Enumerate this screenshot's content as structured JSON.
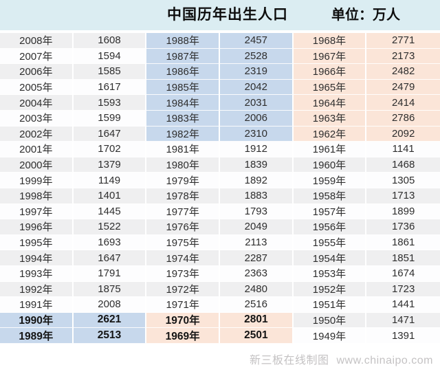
{
  "header": {
    "title": "中国历年出生人口",
    "unit_label": "单位：万人"
  },
  "footer": {
    "credit": "新三板在线制图",
    "site": "www.chinaipo.com"
  },
  "watermark": [
    "新三板在线",
    "www.chinaipo.com"
  ],
  "colors": {
    "header_bg": "#dbedf2",
    "row_gray": "#efeff0",
    "row_white": "#fdfdfe",
    "highlight_blue": "#c7d8ec",
    "highlight_peach": "#fbe5d8",
    "text": "#2e2e2e",
    "footer_text": "#c4c2c3"
  },
  "chart_data": {
    "type": "table",
    "title": "中国历年出生人口",
    "unit": "万人",
    "groups": [
      {
        "rows": [
          {
            "year": "2008年",
            "value": 1608,
            "hl": null,
            "bold": false
          },
          {
            "year": "2007年",
            "value": 1594,
            "hl": null,
            "bold": false
          },
          {
            "year": "2006年",
            "value": 1585,
            "hl": null,
            "bold": false
          },
          {
            "year": "2005年",
            "value": 1617,
            "hl": null,
            "bold": false
          },
          {
            "year": "2004年",
            "value": 1593,
            "hl": null,
            "bold": false
          },
          {
            "year": "2003年",
            "value": 1599,
            "hl": null,
            "bold": false
          },
          {
            "year": "2002年",
            "value": 1647,
            "hl": null,
            "bold": false
          },
          {
            "year": "2001年",
            "value": 1702,
            "hl": null,
            "bold": false
          },
          {
            "year": "2000年",
            "value": 1379,
            "hl": null,
            "bold": false
          },
          {
            "year": "1999年",
            "value": 1149,
            "hl": null,
            "bold": false
          },
          {
            "year": "1998年",
            "value": 1401,
            "hl": null,
            "bold": false
          },
          {
            "year": "1997年",
            "value": 1445,
            "hl": null,
            "bold": false
          },
          {
            "year": "1996年",
            "value": 1522,
            "hl": null,
            "bold": false
          },
          {
            "year": "1995年",
            "value": 1693,
            "hl": null,
            "bold": false
          },
          {
            "year": "1994年",
            "value": 1647,
            "hl": null,
            "bold": false
          },
          {
            "year": "1993年",
            "value": 1791,
            "hl": null,
            "bold": false
          },
          {
            "year": "1992年",
            "value": 1875,
            "hl": null,
            "bold": false
          },
          {
            "year": "1991年",
            "value": 2008,
            "hl": null,
            "bold": false
          },
          {
            "year": "1990年",
            "value": 2621,
            "hl": "blue",
            "bold": true
          },
          {
            "year": "1989年",
            "value": 2513,
            "hl": "blue",
            "bold": true
          }
        ]
      },
      {
        "rows": [
          {
            "year": "1988年",
            "value": 2457,
            "hl": "blue",
            "bold": false
          },
          {
            "year": "1987年",
            "value": 2528,
            "hl": "blue",
            "bold": false
          },
          {
            "year": "1986年",
            "value": 2319,
            "hl": "blue",
            "bold": false
          },
          {
            "year": "1985年",
            "value": 2042,
            "hl": "blue",
            "bold": false
          },
          {
            "year": "1984年",
            "value": 2031,
            "hl": "blue",
            "bold": false
          },
          {
            "year": "1983年",
            "value": 2006,
            "hl": "blue",
            "bold": false
          },
          {
            "year": "1982年",
            "value": 2310,
            "hl": "blue",
            "bold": false
          },
          {
            "year": "1981年",
            "value": 1912,
            "hl": null,
            "bold": false
          },
          {
            "year": "1980年",
            "value": 1839,
            "hl": null,
            "bold": false
          },
          {
            "year": "1979年",
            "value": 1892,
            "hl": null,
            "bold": false
          },
          {
            "year": "1978年",
            "value": 1883,
            "hl": null,
            "bold": false
          },
          {
            "year": "1977年",
            "value": 1793,
            "hl": null,
            "bold": false
          },
          {
            "year": "1976年",
            "value": 2049,
            "hl": null,
            "bold": false
          },
          {
            "year": "1975年",
            "value": 2113,
            "hl": null,
            "bold": false
          },
          {
            "year": "1974年",
            "value": 2287,
            "hl": null,
            "bold": false
          },
          {
            "year": "1973年",
            "value": 2363,
            "hl": null,
            "bold": false
          },
          {
            "year": "1972年",
            "value": 2480,
            "hl": null,
            "bold": false
          },
          {
            "year": "1971年",
            "value": 2516,
            "hl": null,
            "bold": false
          },
          {
            "year": "1970年",
            "value": 2801,
            "hl": "peach",
            "bold": true
          },
          {
            "year": "1969年",
            "value": 2501,
            "hl": "peach",
            "bold": true
          }
        ]
      },
      {
        "rows": [
          {
            "year": "1968年",
            "value": 2771,
            "hl": "peach",
            "bold": false
          },
          {
            "year": "1967年",
            "value": 2173,
            "hl": "peach",
            "bold": false
          },
          {
            "year": "1966年",
            "value": 2482,
            "hl": "peach",
            "bold": false
          },
          {
            "year": "1965年",
            "value": 2479,
            "hl": "peach",
            "bold": false
          },
          {
            "year": "1964年",
            "value": 2414,
            "hl": "peach",
            "bold": false
          },
          {
            "year": "1963年",
            "value": 2786,
            "hl": "peach",
            "bold": false
          },
          {
            "year": "1962年",
            "value": 2092,
            "hl": "peach",
            "bold": false
          },
          {
            "year": "1961年",
            "value": 1141,
            "hl": null,
            "bold": false
          },
          {
            "year": "1960年",
            "value": 1468,
            "hl": null,
            "bold": false
          },
          {
            "year": "1959年",
            "value": 1305,
            "hl": null,
            "bold": false
          },
          {
            "year": "1958年",
            "value": 1713,
            "hl": null,
            "bold": false
          },
          {
            "year": "1957年",
            "value": 1899,
            "hl": null,
            "bold": false
          },
          {
            "year": "1956年",
            "value": 1736,
            "hl": null,
            "bold": false
          },
          {
            "year": "1955年",
            "value": 1861,
            "hl": null,
            "bold": false
          },
          {
            "year": "1954年",
            "value": 1851,
            "hl": null,
            "bold": false
          },
          {
            "year": "1953年",
            "value": 1674,
            "hl": null,
            "bold": false
          },
          {
            "year": "1952年",
            "value": 1723,
            "hl": null,
            "bold": false
          },
          {
            "year": "1951年",
            "value": 1441,
            "hl": null,
            "bold": false
          },
          {
            "year": "1950年",
            "value": 1471,
            "hl": null,
            "bold": false
          },
          {
            "year": "1949年",
            "value": 1391,
            "hl": null,
            "bold": false
          }
        ]
      }
    ]
  }
}
